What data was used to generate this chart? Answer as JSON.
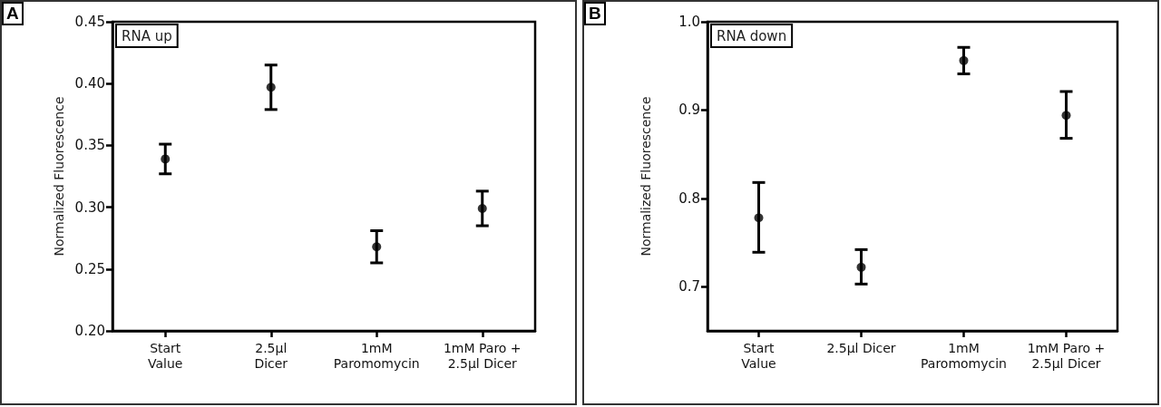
{
  "chart_data": [
    {
      "type": "scatter",
      "ylabel": "Normalized Fluorescence",
      "annotations": [
        "A",
        "RNA up"
      ],
      "categories": [
        "Start\nValue",
        "2.5µl\nDicer",
        "1mM\nParomomycin",
        "1mM Paro +\n2.5µl Dicer"
      ],
      "values": [
        0.339,
        0.397,
        0.268,
        0.299
      ],
      "errors": [
        [
          0.327,
          0.351
        ],
        [
          0.379,
          0.415
        ],
        [
          0.255,
          0.281
        ],
        [
          0.285,
          0.313
        ]
      ],
      "color": "#000000",
      "marker": "circle",
      "ylim": [
        0.2,
        0.45
      ],
      "yticks": [
        {
          "value": 0.2,
          "label": "0.20"
        },
        {
          "value": 0.25,
          "label": "0.25"
        },
        {
          "value": 0.3,
          "label": "0.30"
        },
        {
          "value": 0.35,
          "label": "0.35"
        },
        {
          "value": 0.4,
          "label": "0.40"
        },
        {
          "value": 0.45,
          "label": "0.45"
        }
      ],
      "grid": false
    },
    {
      "type": "scatter",
      "ylabel": "Normalized Fluorescence",
      "annotations": [
        "B",
        "RNA down"
      ],
      "categories": [
        "Start\nValue",
        "2.5µl Dicer",
        "1mM\nParomomycin",
        "1mM Paro +\n2.5µl Dicer"
      ],
      "values": [
        0.778,
        0.722,
        0.956,
        0.894
      ],
      "errors": [
        [
          0.739,
          0.818
        ],
        [
          0.703,
          0.742
        ],
        [
          0.941,
          0.971
        ],
        [
          0.868,
          0.921
        ]
      ],
      "color": "#000000",
      "marker": "circle",
      "ylim": [
        0.65,
        1.0
      ],
      "yticks": [
        0.7,
        0.8,
        0.9,
        {
          "value": 1.0,
          "label": "1.0"
        }
      ],
      "grid": false
    }
  ]
}
